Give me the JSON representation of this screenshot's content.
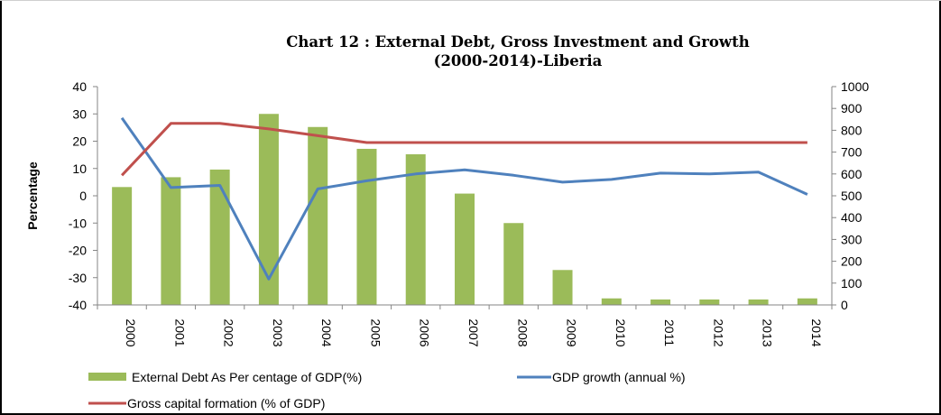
{
  "chart_data": {
    "type": "bar+line",
    "title": "Chart 12 : External Debt, Gross Investment and Growth",
    "subtitle": "(2000-2014)-Liberia",
    "ylabel": "Percentage",
    "categories": [
      "2000",
      "2001",
      "2002",
      "2003",
      "2004",
      "2005",
      "2006",
      "2007",
      "2008",
      "2009",
      "2010",
      "2011",
      "2012",
      "2013",
      "2014"
    ],
    "left_axis": {
      "ylim": [
        -40,
        40
      ],
      "ticks": [
        40,
        30,
        20,
        10,
        0,
        -10,
        -20,
        -30,
        -40
      ]
    },
    "right_axis": {
      "ylim": [
        0,
        1000
      ],
      "ticks": [
        1000,
        900,
        800,
        700,
        600,
        500,
        400,
        300,
        200,
        100,
        0
      ]
    },
    "series": [
      {
        "name": "External Debt As Per centage of GDP(%)",
        "kind": "bar",
        "axis": "right",
        "color": "#9BBB59",
        "values": [
          540,
          585,
          620,
          875,
          815,
          715,
          690,
          510,
          375,
          160,
          30,
          25,
          25,
          25,
          30
        ]
      },
      {
        "name": "GDP growth (annual %)",
        "kind": "line",
        "axis": "left",
        "color": "#4F81BD",
        "values": [
          28.5,
          3.0,
          3.8,
          -30.5,
          2.5,
          5.5,
          8.0,
          9.5,
          7.5,
          5.0,
          6.0,
          8.3,
          8.0,
          8.7,
          0.5
        ]
      },
      {
        "name": "Gross capital formation (% of GDP)",
        "kind": "line",
        "axis": "left",
        "color": "#C0504D",
        "values": [
          7.5,
          26.5,
          26.5,
          24.5,
          22.0,
          19.5,
          19.5,
          19.5,
          19.5,
          19.5,
          19.5,
          19.5,
          19.5,
          19.5,
          19.5
        ]
      }
    ],
    "grid": false,
    "legend": "bottom"
  }
}
